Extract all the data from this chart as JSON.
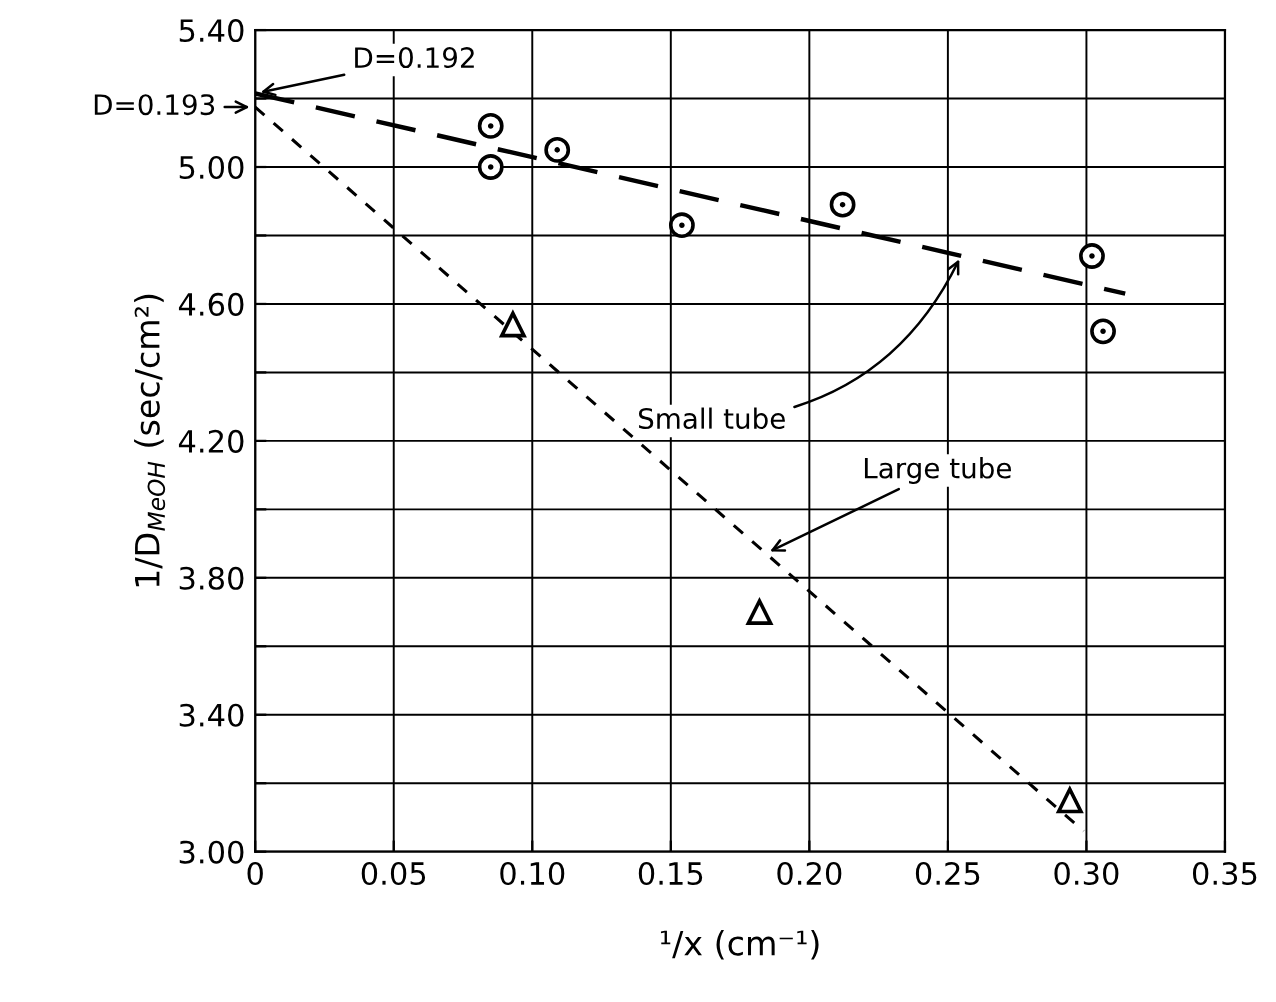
{
  "chart_data": {
    "type": "scatter",
    "xlabel": "¹/x (cm⁻¹)",
    "ylabel": "1/D$_{MeOH}$ (sec/cm²)",
    "xlim": [
      0,
      0.35
    ],
    "ylim": [
      3.0,
      5.4
    ],
    "xticks": [
      0,
      0.05,
      {
        "value": 0.1,
        "label": "0.10"
      },
      0.15,
      {
        "value": 0.2,
        "label": "0.20"
      },
      0.25,
      {
        "value": 0.3,
        "label": "0.30"
      },
      0.35
    ],
    "yticks": [
      {
        "value": 3.0,
        "label": "3.00"
      },
      {
        "value": 3.2,
        "label": null
      },
      {
        "value": 3.4,
        "label": "3.40"
      },
      {
        "value": 3.6,
        "label": null
      },
      {
        "value": 3.8,
        "label": "3.80"
      },
      {
        "value": 4.0,
        "label": null
      },
      {
        "value": 4.2,
        "label": "4.20"
      },
      {
        "value": 4.4,
        "label": null
      },
      {
        "value": 4.6,
        "label": "4.60"
      },
      {
        "value": 4.8,
        "label": null
      },
      {
        "value": 5.0,
        "label": "5.00"
      },
      {
        "value": 5.2,
        "label": null
      },
      {
        "value": 5.4,
        "label": "5.40"
      }
    ],
    "grid": true,
    "legend": false,
    "series": [
      {
        "marker": "circle",
        "color": "#000000",
        "x": [
          0.085,
          0.085,
          0.109,
          0.154,
          0.212,
          0.302,
          0.306
        ],
        "values": [
          5.12,
          5.0,
          5.05,
          4.83,
          4.89,
          4.74,
          4.52
        ]
      },
      {
        "marker": "triangle",
        "color": "#000000",
        "x": [
          0.093,
          0.182,
          0.294
        ],
        "values": [
          4.54,
          3.7,
          3.15
        ]
      },
      {
        "type": "line",
        "line_style": "dashed",
        "color": "#000000",
        "x": [
          0,
          0.314
        ],
        "values": [
          5.215,
          4.63
        ]
      },
      {
        "type": "line",
        "line_style": "dotted",
        "color": "#000000",
        "x": [
          0,
          0.299
        ],
        "values": [
          5.175,
          3.06
        ]
      }
    ],
    "annotations": [
      {
        "text": "D=0.192",
        "x": 0,
        "y": 5.215
      },
      {
        "text": "D=0.193",
        "x": 0,
        "y": 5.175
      },
      {
        "text": "Small tube",
        "x": 0.255,
        "y": 4.745
      },
      {
        "text": "Large tube",
        "x": 0.184,
        "y": 3.87
      }
    ]
  }
}
